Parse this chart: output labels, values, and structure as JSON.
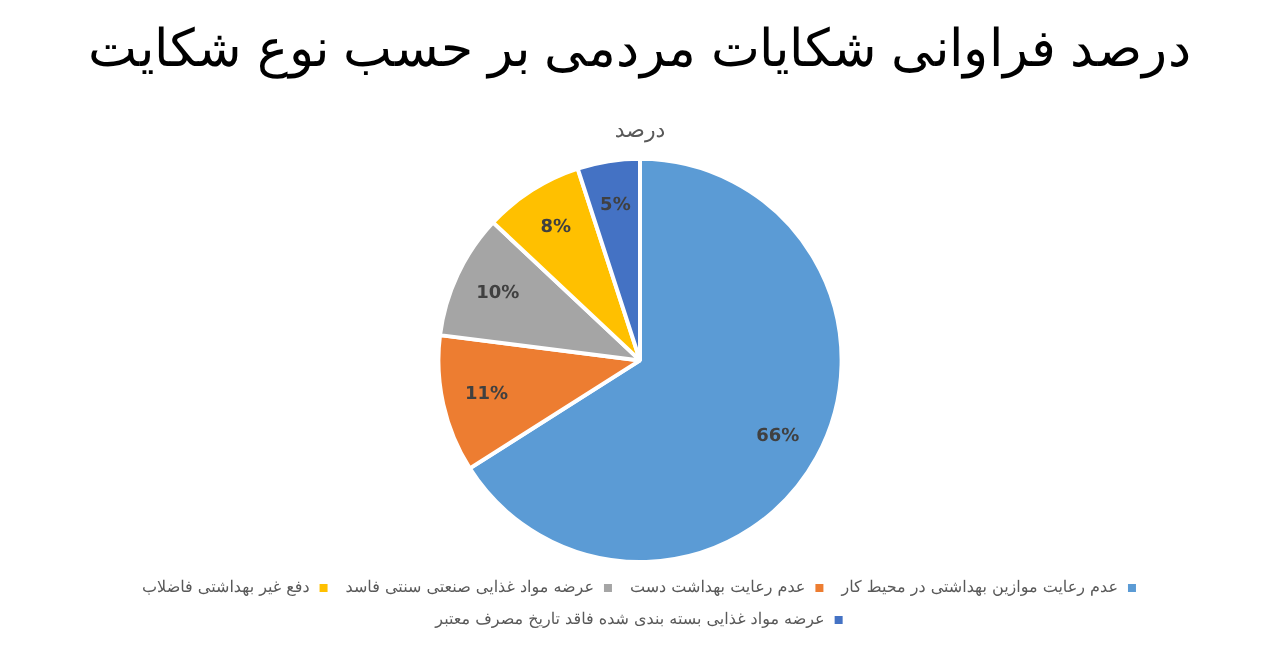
{
  "chart_data": {
    "type": "pie",
    "title": "درصد فراوانی شکایات مردمی بر حسب نوع شکایت",
    "subtitle": "درصد",
    "categories": [
      "عدم رعایت موازین بهداشتی در محیط کار",
      "عدم رعایت بهداشت دست",
      "عرضه مواد غذایی صنعتی سنتی فاسد",
      "دفع غیر بهداشتی فاضلاب",
      "عرضه مواد غذایی بسته بندی شده فاقد تاریخ مصرف معتبر"
    ],
    "values": [
      66,
      11,
      10,
      8,
      5
    ],
    "colors": [
      "#5b9bd5",
      "#ed7d31",
      "#a5a5a5",
      "#ffc000",
      "#4472c4"
    ],
    "value_labels": [
      "66%",
      "11%",
      "10%",
      "8%",
      "5%"
    ],
    "legend": "bottom"
  }
}
